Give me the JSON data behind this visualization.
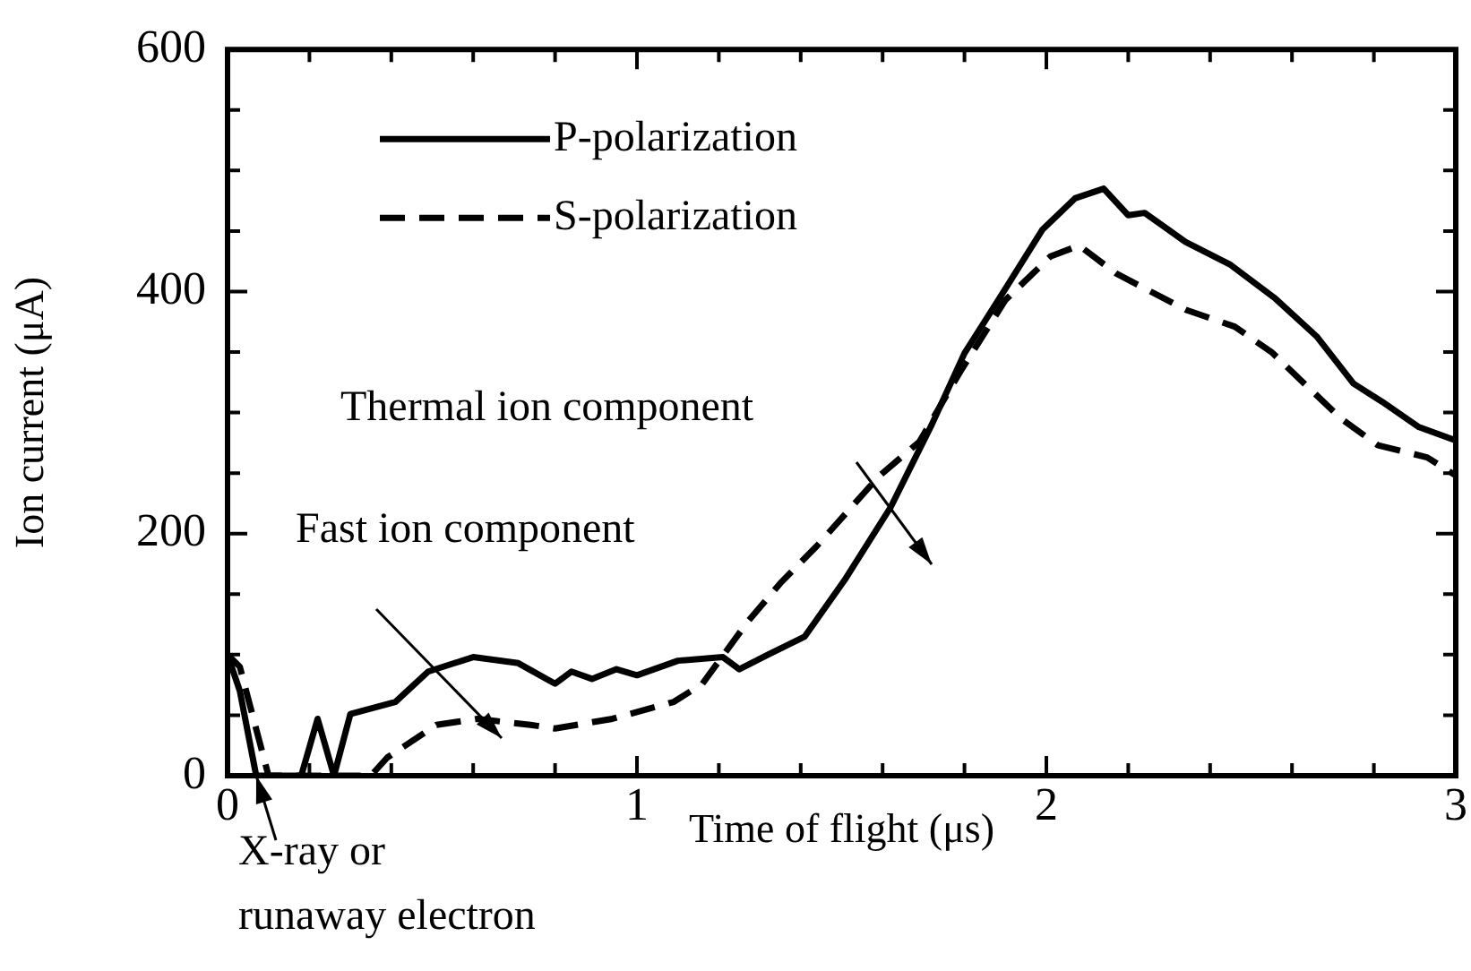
{
  "chart_data": {
    "type": "line",
    "xlabel": "Time of flight (μs)",
    "ylabel": "Ion current (μA)",
    "xlim": [
      0,
      3
    ],
    "xticks": [
      0,
      {
        "value": 0.2,
        "label": null
      },
      {
        "value": 0.4,
        "label": null
      },
      {
        "value": 0.6,
        "label": null
      },
      {
        "value": 0.8,
        "label": null
      },
      1,
      {
        "value": 1.2,
        "label": null
      },
      {
        "value": 1.4,
        "label": null
      },
      {
        "value": 1.6,
        "label": null
      },
      {
        "value": 1.8,
        "label": null
      },
      2,
      {
        "value": 2.2,
        "label": null
      },
      {
        "value": 2.4,
        "label": null
      },
      {
        "value": 2.6,
        "label": null
      },
      {
        "value": 2.8,
        "label": null
      },
      3
    ],
    "ylim": [
      0,
      600
    ],
    "yticks": [
      0,
      {
        "value": 50,
        "label": null
      },
      {
        "value": 100,
        "label": null
      },
      {
        "value": 150,
        "label": null
      },
      200,
      {
        "value": 250,
        "label": null
      },
      {
        "value": 300,
        "label": null
      },
      {
        "value": 350,
        "label": null
      },
      400,
      {
        "value": 450,
        "label": null
      },
      {
        "value": 500,
        "label": null
      },
      {
        "value": 550,
        "label": null
      },
      600
    ],
    "grid": false,
    "legend": "top left",
    "marker": "none",
    "series": [
      {
        "name": "P-polarization",
        "color": "#000000",
        "line_style": "solid",
        "x": [
          0,
          0.03,
          0.07,
          0.18,
          0.22,
          0.26,
          0.3,
          0.41,
          0.49,
          0.6,
          0.71,
          0.8,
          0.84,
          0.89,
          0.95,
          1.0,
          1.1,
          1.21,
          1.25,
          1.32,
          1.41,
          1.51,
          1.62,
          1.72,
          1.8,
          1.89,
          1.99,
          2.07,
          2.14,
          2.2,
          2.24,
          2.34,
          2.45,
          2.56,
          2.66,
          2.75,
          2.82,
          2.91,
          3.0
        ],
        "values": [
          100,
          70,
          0,
          0,
          47,
          0,
          51,
          61,
          86,
          98,
          93,
          76,
          86,
          80,
          88,
          83,
          95,
          98,
          88,
          100,
          115,
          163,
          222,
          290,
          349,
          397,
          451,
          477,
          485,
          463,
          465,
          441,
          422,
          394,
          363,
          324,
          309,
          288,
          277
        ]
      },
      {
        "name": "S-polarization",
        "color": "#000000",
        "line_style": "dashed",
        "x": [
          0,
          0.03,
          0.1,
          0.35,
          0.39,
          0.51,
          0.61,
          0.74,
          0.8,
          0.94,
          1.09,
          1.16,
          1.27,
          1.35,
          1.44,
          1.59,
          1.69,
          1.79,
          1.9,
          2.01,
          2.08,
          2.17,
          2.34,
          2.46,
          2.55,
          2.63,
          2.72,
          2.81,
          2.93,
          3.0
        ],
        "values": [
          100,
          90,
          0,
          0,
          15,
          42,
          47,
          42,
          39,
          47,
          61,
          76,
          127,
          159,
          190,
          247,
          276,
          334,
          393,
          429,
          438,
          415,
          385,
          371,
          350,
          324,
          295,
          273,
          263,
          248
        ]
      }
    ],
    "annotations": [
      "Thermal ion component",
      "Fast ion component",
      {
        "text": "X-ray or\nrunaway electron",
        "x": 0.07,
        "y": 0
      }
    ]
  }
}
